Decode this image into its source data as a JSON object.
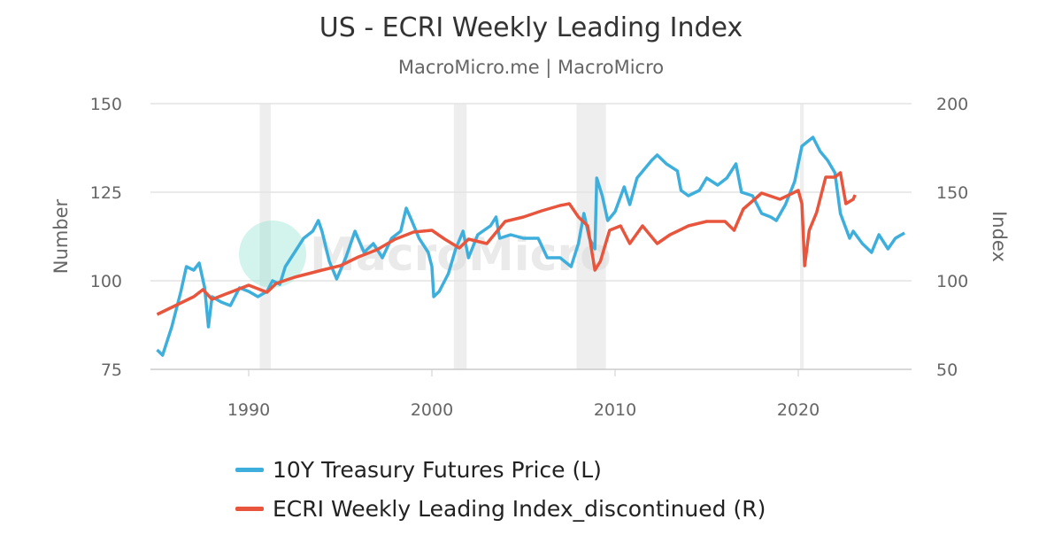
{
  "title": "US - ECRI Weekly Leading Index",
  "subtitle": "MacroMicro.me | MacroMicro",
  "watermark": "MacroMicro",
  "chart_data": {
    "type": "line",
    "title": "US - ECRI Weekly Leading Index",
    "xlim": [
      1984.6,
      2026.0
    ],
    "x_ticks": [
      "1990",
      "2000",
      "2010",
      "2020"
    ],
    "y_left": {
      "label": "Number",
      "lim": [
        75,
        150
      ],
      "ticks": [
        "75",
        "100",
        "125",
        "150"
      ]
    },
    "y_right": {
      "label": "Index",
      "lim": [
        50,
        200
      ],
      "ticks": [
        "50",
        "100",
        "150",
        "200"
      ]
    },
    "grid": true,
    "legend_position": "bottom",
    "recessions": [
      [
        1990.6,
        1991.2
      ],
      [
        2001.2,
        2001.9
      ],
      [
        2007.9,
        2009.5
      ],
      [
        2020.1,
        2020.3
      ]
    ],
    "series": [
      {
        "name": "10Y Treasury Futures Price (L)",
        "axis": "left",
        "color": "#3eafdc",
        "x": [
          1985.0,
          1985.3,
          1985.8,
          1986.3,
          1986.6,
          1987.0,
          1987.3,
          1987.6,
          1987.8,
          1988.0,
          1988.5,
          1989.0,
          1989.5,
          1990.0,
          1990.5,
          1991.0,
          1991.3,
          1991.7,
          1992.0,
          1992.5,
          1993.0,
          1993.5,
          1993.8,
          1994.0,
          1994.4,
          1994.8,
          1995.3,
          1995.8,
          1996.3,
          1996.8,
          1997.3,
          1997.8,
          1998.3,
          1998.6,
          1998.9,
          1999.3,
          1999.8,
          2000.0,
          2000.1,
          2000.4,
          2000.9,
          2001.3,
          2001.7,
          2002.0,
          2002.5,
          2003.2,
          2003.5,
          2003.7,
          2004.3,
          2005.0,
          2005.8,
          2006.3,
          2007.0,
          2007.6,
          2008.0,
          2008.3,
          2008.6,
          2008.9,
          2009.0,
          2009.3,
          2009.6,
          2010.0,
          2010.5,
          2010.8,
          2011.2,
          2011.6,
          2012.0,
          2012.3,
          2012.8,
          2013.4,
          2013.6,
          2014.0,
          2014.6,
          2015.0,
          2015.6,
          2016.1,
          2016.6,
          2016.9,
          2017.5,
          2018.0,
          2018.5,
          2018.8,
          2019.3,
          2019.8,
          2020.2,
          2020.8,
          2021.2,
          2021.6,
          2022.0,
          2022.3,
          2022.8,
          2023.0,
          2023.5,
          2024.0,
          2024.4,
          2024.9,
          2025.3,
          2025.8
        ],
        "values": [
          80.5,
          79,
          87,
          97,
          104,
          103,
          105,
          98,
          87,
          95.5,
          94,
          93,
          98,
          97,
          95.5,
          97,
          100,
          99,
          104,
          108,
          112,
          114,
          117,
          114,
          105.5,
          100.5,
          106.5,
          114,
          108,
          110.5,
          106.5,
          112,
          114,
          120.5,
          117,
          112,
          108,
          104,
          95.5,
          97,
          102,
          109,
          114,
          106.5,
          113,
          115.5,
          118,
          112,
          113,
          112,
          112,
          106.5,
          106.5,
          104,
          110.5,
          119,
          112,
          109,
          129,
          124,
          117,
          119.5,
          126.5,
          121.5,
          129,
          131.5,
          134,
          135.5,
          133,
          131,
          125.5,
          124,
          125.5,
          129,
          127,
          129,
          133,
          125,
          124,
          119,
          118,
          117,
          121.5,
          128,
          138,
          140.5,
          136.5,
          134,
          130.5,
          119,
          112,
          114,
          110.5,
          108,
          113,
          109,
          112,
          113.5
        ]
      },
      {
        "name": "ECRI Weekly Leading Index_discontinued (R)",
        "axis": "right",
        "color": "#e8553c",
        "x": [
          1985.0,
          1986.0,
          1987.0,
          1987.5,
          1988.0,
          1989.0,
          1990.0,
          1991.0,
          1991.5,
          1992.5,
          1994.0,
          1995.0,
          1996.0,
          1997.0,
          1998.0,
          1999.0,
          2000.0,
          2000.7,
          2001.5,
          2002.0,
          2003.0,
          2004.0,
          2005.0,
          2006.0,
          2007.0,
          2007.5,
          2008.0,
          2008.5,
          2008.9,
          2009.2,
          2009.7,
          2010.3,
          2010.8,
          2011.5,
          2012.3,
          2013.0,
          2014.0,
          2015.0,
          2016.0,
          2016.5,
          2017.0,
          2018.0,
          2019.0,
          2020.0,
          2020.2,
          2020.35,
          2020.6,
          2021.0,
          2021.5,
          2022.0,
          2022.3,
          2022.6,
          2023.0,
          2023.1
        ],
        "values": [
          81,
          86,
          91,
          95,
          89.5,
          93.5,
          97.5,
          93.5,
          98.5,
          102,
          106,
          108.5,
          113.5,
          117.5,
          123.5,
          127.5,
          128.5,
          123.5,
          118.5,
          123.5,
          121,
          133.5,
          136,
          139.5,
          142.5,
          143.5,
          136,
          131,
          106,
          111,
          128.5,
          131,
          121,
          131,
          121,
          126,
          131,
          133.5,
          133.5,
          128.5,
          140.5,
          149.5,
          146,
          151,
          143.5,
          108.5,
          128.5,
          138.5,
          158.5,
          158.5,
          161,
          143.5,
          146,
          148.5
        ]
      }
    ]
  }
}
